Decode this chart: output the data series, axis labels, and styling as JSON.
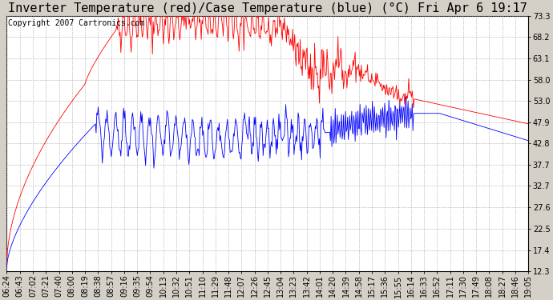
{
  "title": "Inverter Temperature (red)/Case Temperature (blue) (°C) Fri Apr 6 19:17",
  "copyright": "Copyright 2007 Cartronics.com",
  "yticks": [
    12.3,
    17.4,
    22.5,
    27.6,
    32.7,
    37.7,
    42.8,
    47.9,
    53.0,
    58.0,
    63.1,
    68.2,
    73.3
  ],
  "ylim": [
    12.3,
    73.3
  ],
  "xtick_labels": [
    "06:24",
    "06:43",
    "07:02",
    "07:21",
    "07:40",
    "08:00",
    "08:19",
    "08:38",
    "08:57",
    "09:16",
    "09:35",
    "09:54",
    "10:13",
    "10:32",
    "10:51",
    "11:10",
    "11:29",
    "11:48",
    "12:07",
    "12:26",
    "12:45",
    "13:04",
    "13:23",
    "13:42",
    "14:01",
    "14:20",
    "14:39",
    "14:58",
    "15:17",
    "15:36",
    "15:55",
    "16:14",
    "16:33",
    "16:52",
    "17:11",
    "17:30",
    "17:49",
    "18:08",
    "18:27",
    "18:46",
    "19:05"
  ],
  "background_color": "#d4d0c8",
  "plot_bg_color": "#ffffff",
  "grid_color": "#b0b0b0",
  "red_color": "#ff0000",
  "blue_color": "#0000ff",
  "title_fontsize": 11,
  "copyright_fontsize": 7,
  "tick_fontsize": 7
}
